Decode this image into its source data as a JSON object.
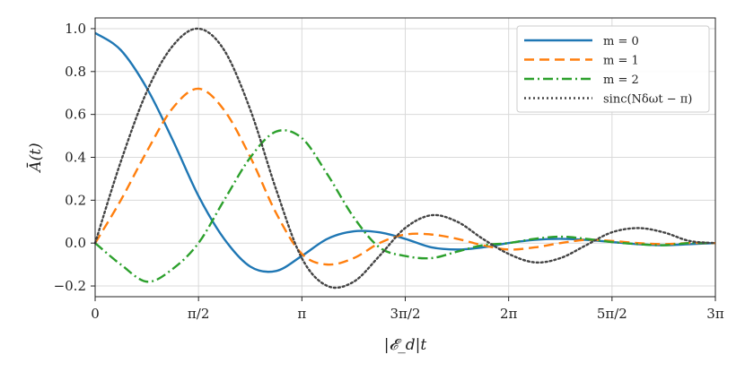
{
  "chart_data": {
    "type": "line",
    "xlabel": "|𝓔_d|t",
    "ylabel": "Ā(t)",
    "xlim": [
      0,
      9.42478
    ],
    "ylim": [
      -0.25,
      1.05
    ],
    "grid": true,
    "legend_position": "top-right",
    "x_ticks": [
      {
        "value": 0,
        "label": "0"
      },
      {
        "value": 1.5708,
        "label": "π/2"
      },
      {
        "value": 3.14159,
        "label": "π"
      },
      {
        "value": 4.71239,
        "label": "3π/2"
      },
      {
        "value": 6.28319,
        "label": "2π"
      },
      {
        "value": 7.85398,
        "label": "5π/2"
      },
      {
        "value": 9.42478,
        "label": "3π"
      }
    ],
    "y_ticks": [
      {
        "value": -0.2,
        "label": "−0.2"
      },
      {
        "value": 0.0,
        "label": "0.0"
      },
      {
        "value": 0.2,
        "label": "0.2"
      },
      {
        "value": 0.4,
        "label": "0.4"
      },
      {
        "value": 0.6,
        "label": "0.6"
      },
      {
        "value": 0.8,
        "label": "0.8"
      },
      {
        "value": 1.0,
        "label": "1.0"
      }
    ],
    "series": [
      {
        "name": "m = 0",
        "color": "#1f77b4",
        "dash": "solid",
        "points": [
          [
            0.0,
            0.98
          ],
          [
            0.39,
            0.9
          ],
          [
            0.79,
            0.72
          ],
          [
            1.18,
            0.48
          ],
          [
            1.57,
            0.22
          ],
          [
            1.96,
            0.02
          ],
          [
            2.36,
            -0.11
          ],
          [
            2.75,
            -0.13
          ],
          [
            3.14,
            -0.06
          ],
          [
            3.53,
            0.02
          ],
          [
            3.93,
            0.055
          ],
          [
            4.32,
            0.05
          ],
          [
            4.71,
            0.02
          ],
          [
            5.11,
            -0.02
          ],
          [
            5.5,
            -0.03
          ],
          [
            5.89,
            -0.02
          ],
          [
            6.28,
            0.0
          ],
          [
            6.68,
            0.015
          ],
          [
            7.07,
            0.02
          ],
          [
            7.46,
            0.015
          ],
          [
            7.85,
            0.005
          ],
          [
            8.25,
            -0.005
          ],
          [
            8.64,
            -0.01
          ],
          [
            9.03,
            -0.005
          ],
          [
            9.42,
            0.0
          ]
        ]
      },
      {
        "name": "m = 1",
        "color": "#ff7f0e",
        "dash": "dashed",
        "points": [
          [
            0.0,
            0.0
          ],
          [
            0.39,
            0.2
          ],
          [
            0.79,
            0.43
          ],
          [
            1.18,
            0.63
          ],
          [
            1.57,
            0.72
          ],
          [
            1.96,
            0.62
          ],
          [
            2.36,
            0.4
          ],
          [
            2.75,
            0.14
          ],
          [
            3.14,
            -0.05
          ],
          [
            3.53,
            -0.1
          ],
          [
            3.93,
            -0.07
          ],
          [
            4.32,
            0.0
          ],
          [
            4.71,
            0.04
          ],
          [
            5.11,
            0.04
          ],
          [
            5.5,
            0.02
          ],
          [
            5.89,
            -0.01
          ],
          [
            6.28,
            -0.03
          ],
          [
            6.68,
            -0.02
          ],
          [
            7.07,
            0.0
          ],
          [
            7.46,
            0.015
          ],
          [
            7.85,
            0.01
          ],
          [
            8.25,
            0.0
          ],
          [
            8.64,
            -0.005
          ],
          [
            9.03,
            0.0
          ],
          [
            9.42,
            0.0
          ]
        ]
      },
      {
        "name": "m = 2",
        "color": "#2ca02c",
        "dash": "dashdot",
        "points": [
          [
            0.0,
            0.0
          ],
          [
            0.39,
            -0.1
          ],
          [
            0.79,
            -0.18
          ],
          [
            1.18,
            -0.12
          ],
          [
            1.57,
            0.0
          ],
          [
            1.96,
            0.2
          ],
          [
            2.36,
            0.4
          ],
          [
            2.75,
            0.52
          ],
          [
            3.14,
            0.49
          ],
          [
            3.53,
            0.32
          ],
          [
            3.93,
            0.12
          ],
          [
            4.32,
            -0.02
          ],
          [
            4.71,
            -0.06
          ],
          [
            5.11,
            -0.07
          ],
          [
            5.5,
            -0.04
          ],
          [
            5.89,
            -0.01
          ],
          [
            6.28,
            0.0
          ],
          [
            6.68,
            0.02
          ],
          [
            7.07,
            0.03
          ],
          [
            7.46,
            0.02
          ],
          [
            7.85,
            0.005
          ],
          [
            8.25,
            -0.005
          ],
          [
            8.64,
            -0.01
          ],
          [
            9.03,
            0.0
          ],
          [
            9.42,
            0.0
          ]
        ]
      },
      {
        "name": "sinc(Nδωt − π)",
        "color": "#444444",
        "dash": "dotted",
        "points": [
          [
            0.0,
            0.0
          ],
          [
            0.39,
            0.38
          ],
          [
            0.79,
            0.71
          ],
          [
            1.18,
            0.92
          ],
          [
            1.57,
            1.0
          ],
          [
            1.96,
            0.9
          ],
          [
            2.36,
            0.62
          ],
          [
            2.75,
            0.25
          ],
          [
            3.14,
            -0.07
          ],
          [
            3.53,
            -0.2
          ],
          [
            3.93,
            -0.18
          ],
          [
            4.32,
            -0.06
          ],
          [
            4.71,
            0.07
          ],
          [
            5.11,
            0.13
          ],
          [
            5.5,
            0.1
          ],
          [
            5.89,
            0.02
          ],
          [
            6.28,
            -0.05
          ],
          [
            6.68,
            -0.09
          ],
          [
            7.07,
            -0.07
          ],
          [
            7.46,
            -0.01
          ],
          [
            7.85,
            0.05
          ],
          [
            8.25,
            0.07
          ],
          [
            8.64,
            0.05
          ],
          [
            9.03,
            0.01
          ],
          [
            9.42,
            0.0
          ]
        ]
      }
    ]
  }
}
